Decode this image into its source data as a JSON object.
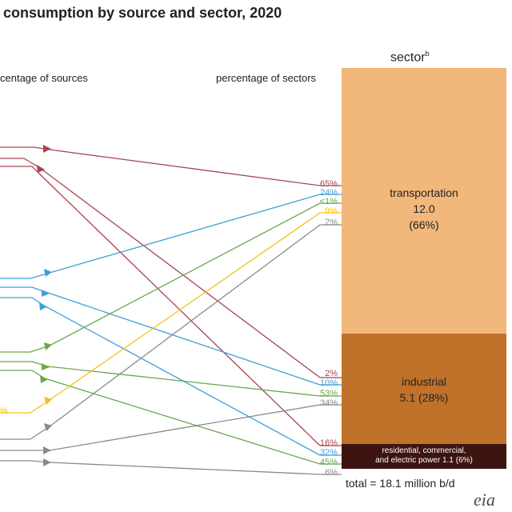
{
  "title": "consumption by source and sector, 2020",
  "headers": {
    "sources": "centage of sources",
    "sectors": "percentage of sectors",
    "sector_main": "sector",
    "sector_sup": "b"
  },
  "colors": {
    "petroleum": "#a9454f",
    "natural_gas": "#3f9fd8",
    "renewable": "#6aa84f",
    "coal": "#f3c21a",
    "nuclear": "#8a8a8a",
    "transportation": "#f2b77b",
    "industrial": "#c0712a",
    "residential": "#3d1410"
  },
  "sectors": {
    "transportation": {
      "name": "transportation",
      "value": "12.0",
      "share": "(66%)"
    },
    "industrial": {
      "name": "industrial",
      "value_line": "5.1  (28%)"
    },
    "residential": {
      "line1": "residential, commercial,",
      "line2": "and electric power  1.1  (6%)"
    }
  },
  "sector_percentages": {
    "transportation": [
      {
        "text": "65%",
        "color": "#a9454f"
      },
      {
        "text": "24%",
        "color": "#3f9fd8"
      },
      {
        "text": "<1%",
        "color": "#6aa84f"
      },
      {
        "text": "9%",
        "color": "#f3c21a"
      },
      {
        "text": "2%",
        "color": "#8a8a8a"
      }
    ],
    "industrial": [
      {
        "text": "2%",
        "color": "#a9454f"
      },
      {
        "text": "10%",
        "color": "#3f9fd8"
      },
      {
        "text": "53%",
        "color": "#6aa84f"
      },
      {
        "text": "34%",
        "color": "#8a8a8a"
      }
    ],
    "residential": [
      {
        "text": "16%",
        "color": "#a9454f"
      },
      {
        "text": "32%",
        "color": "#3f9fd8"
      },
      {
        "text": "45%",
        "color": "#6aa84f"
      },
      {
        "text": "6%",
        "color": "#8a8a8a"
      }
    ]
  },
  "source_partial_label": "%",
  "total": "total = 18.1 million b/d",
  "logo": "eia"
}
